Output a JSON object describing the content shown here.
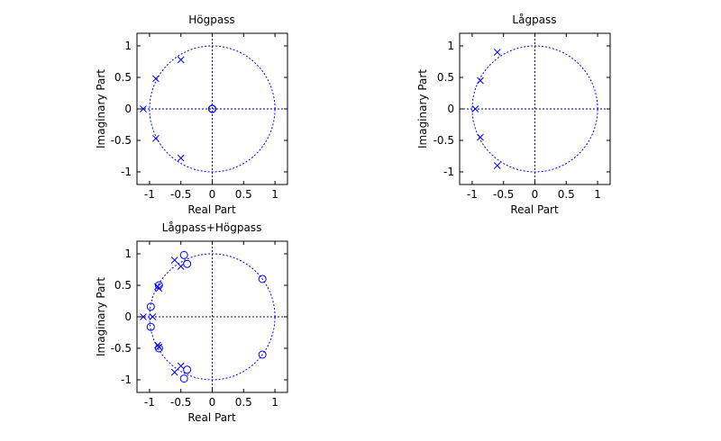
{
  "chart_data": [
    {
      "type": "scatter",
      "title": "Högpass",
      "xlabel": "Real Part",
      "ylabel": "Imaginary Part",
      "xlim": [
        -1.2,
        1.2
      ],
      "ylim": [
        -1.2,
        1.2
      ],
      "xticks": [
        "-1",
        "-0.5",
        "0",
        "0.5",
        "1"
      ],
      "yticks": [
        "-1",
        "-0.5",
        "0",
        "0.5",
        "1"
      ],
      "grid": false,
      "unit_circle": true,
      "series": [
        {
          "marker": "x",
          "points": [
            [
              -0.5,
              0.78
            ],
            [
              -0.9,
              0.48
            ],
            [
              -1.1,
              0.0
            ],
            [
              -0.9,
              -0.47
            ],
            [
              -0.5,
              -0.78
            ]
          ]
        },
        {
          "marker": "o",
          "points": [
            [
              0.0,
              0.0
            ],
            [
              0.0,
              0.0
            ],
            [
              0.0,
              0.0
            ],
            [
              0.0,
              0.0
            ],
            [
              0.0,
              0.0
            ]
          ]
        }
      ]
    },
    {
      "type": "scatter",
      "title": "Lågpass",
      "xlabel": "Real Part",
      "ylabel": "Imaginary Part",
      "xlim": [
        -1.2,
        1.2
      ],
      "ylim": [
        -1.2,
        1.2
      ],
      "xticks": [
        "-1",
        "-0.5",
        "0",
        "0.5",
        "1"
      ],
      "yticks": [
        "-1",
        "-0.5",
        "0",
        "0.5",
        "1"
      ],
      "grid": false,
      "unit_circle": true,
      "series": [
        {
          "marker": "x",
          "points": [
            [
              -0.6,
              0.9
            ],
            [
              -0.87,
              0.45
            ],
            [
              -0.95,
              0.0
            ],
            [
              -0.87,
              -0.45
            ],
            [
              -0.6,
              -0.9
            ]
          ]
        }
      ]
    },
    {
      "type": "scatter",
      "title": "Lågpass+Högpass",
      "xlabel": "Real Part",
      "ylabel": "Imaginary Part",
      "xlim": [
        -1.2,
        1.2
      ],
      "ylim": [
        -1.2,
        1.2
      ],
      "xticks": [
        "-1",
        "-0.5",
        "0",
        "0.5",
        "1"
      ],
      "yticks": [
        "-1",
        "-0.5",
        "0",
        "0.5",
        "1"
      ],
      "grid": false,
      "unit_circle": true,
      "series": [
        {
          "marker": "x",
          "points": [
            [
              -0.6,
              0.9
            ],
            [
              -0.5,
              0.8
            ],
            [
              -0.87,
              0.48
            ],
            [
              -0.85,
              0.45
            ],
            [
              -1.1,
              0.0
            ],
            [
              -0.95,
              0.0
            ],
            [
              -0.87,
              -0.45
            ],
            [
              -0.85,
              -0.48
            ],
            [
              -0.6,
              -0.88
            ],
            [
              -0.5,
              -0.78
            ]
          ]
        },
        {
          "marker": "o",
          "points": [
            [
              -0.45,
              0.98
            ],
            [
              -0.4,
              0.84
            ],
            [
              -0.85,
              0.5
            ],
            [
              -0.98,
              0.16
            ],
            [
              -0.98,
              -0.16
            ],
            [
              -0.85,
              -0.5
            ],
            [
              -0.4,
              -0.84
            ],
            [
              -0.45,
              -0.98
            ],
            [
              0.8,
              0.6
            ],
            [
              0.8,
              -0.6
            ]
          ]
        }
      ]
    }
  ],
  "colors": {
    "marker": "#0000ff",
    "circle": "#0000ff",
    "axes": "#000000"
  }
}
